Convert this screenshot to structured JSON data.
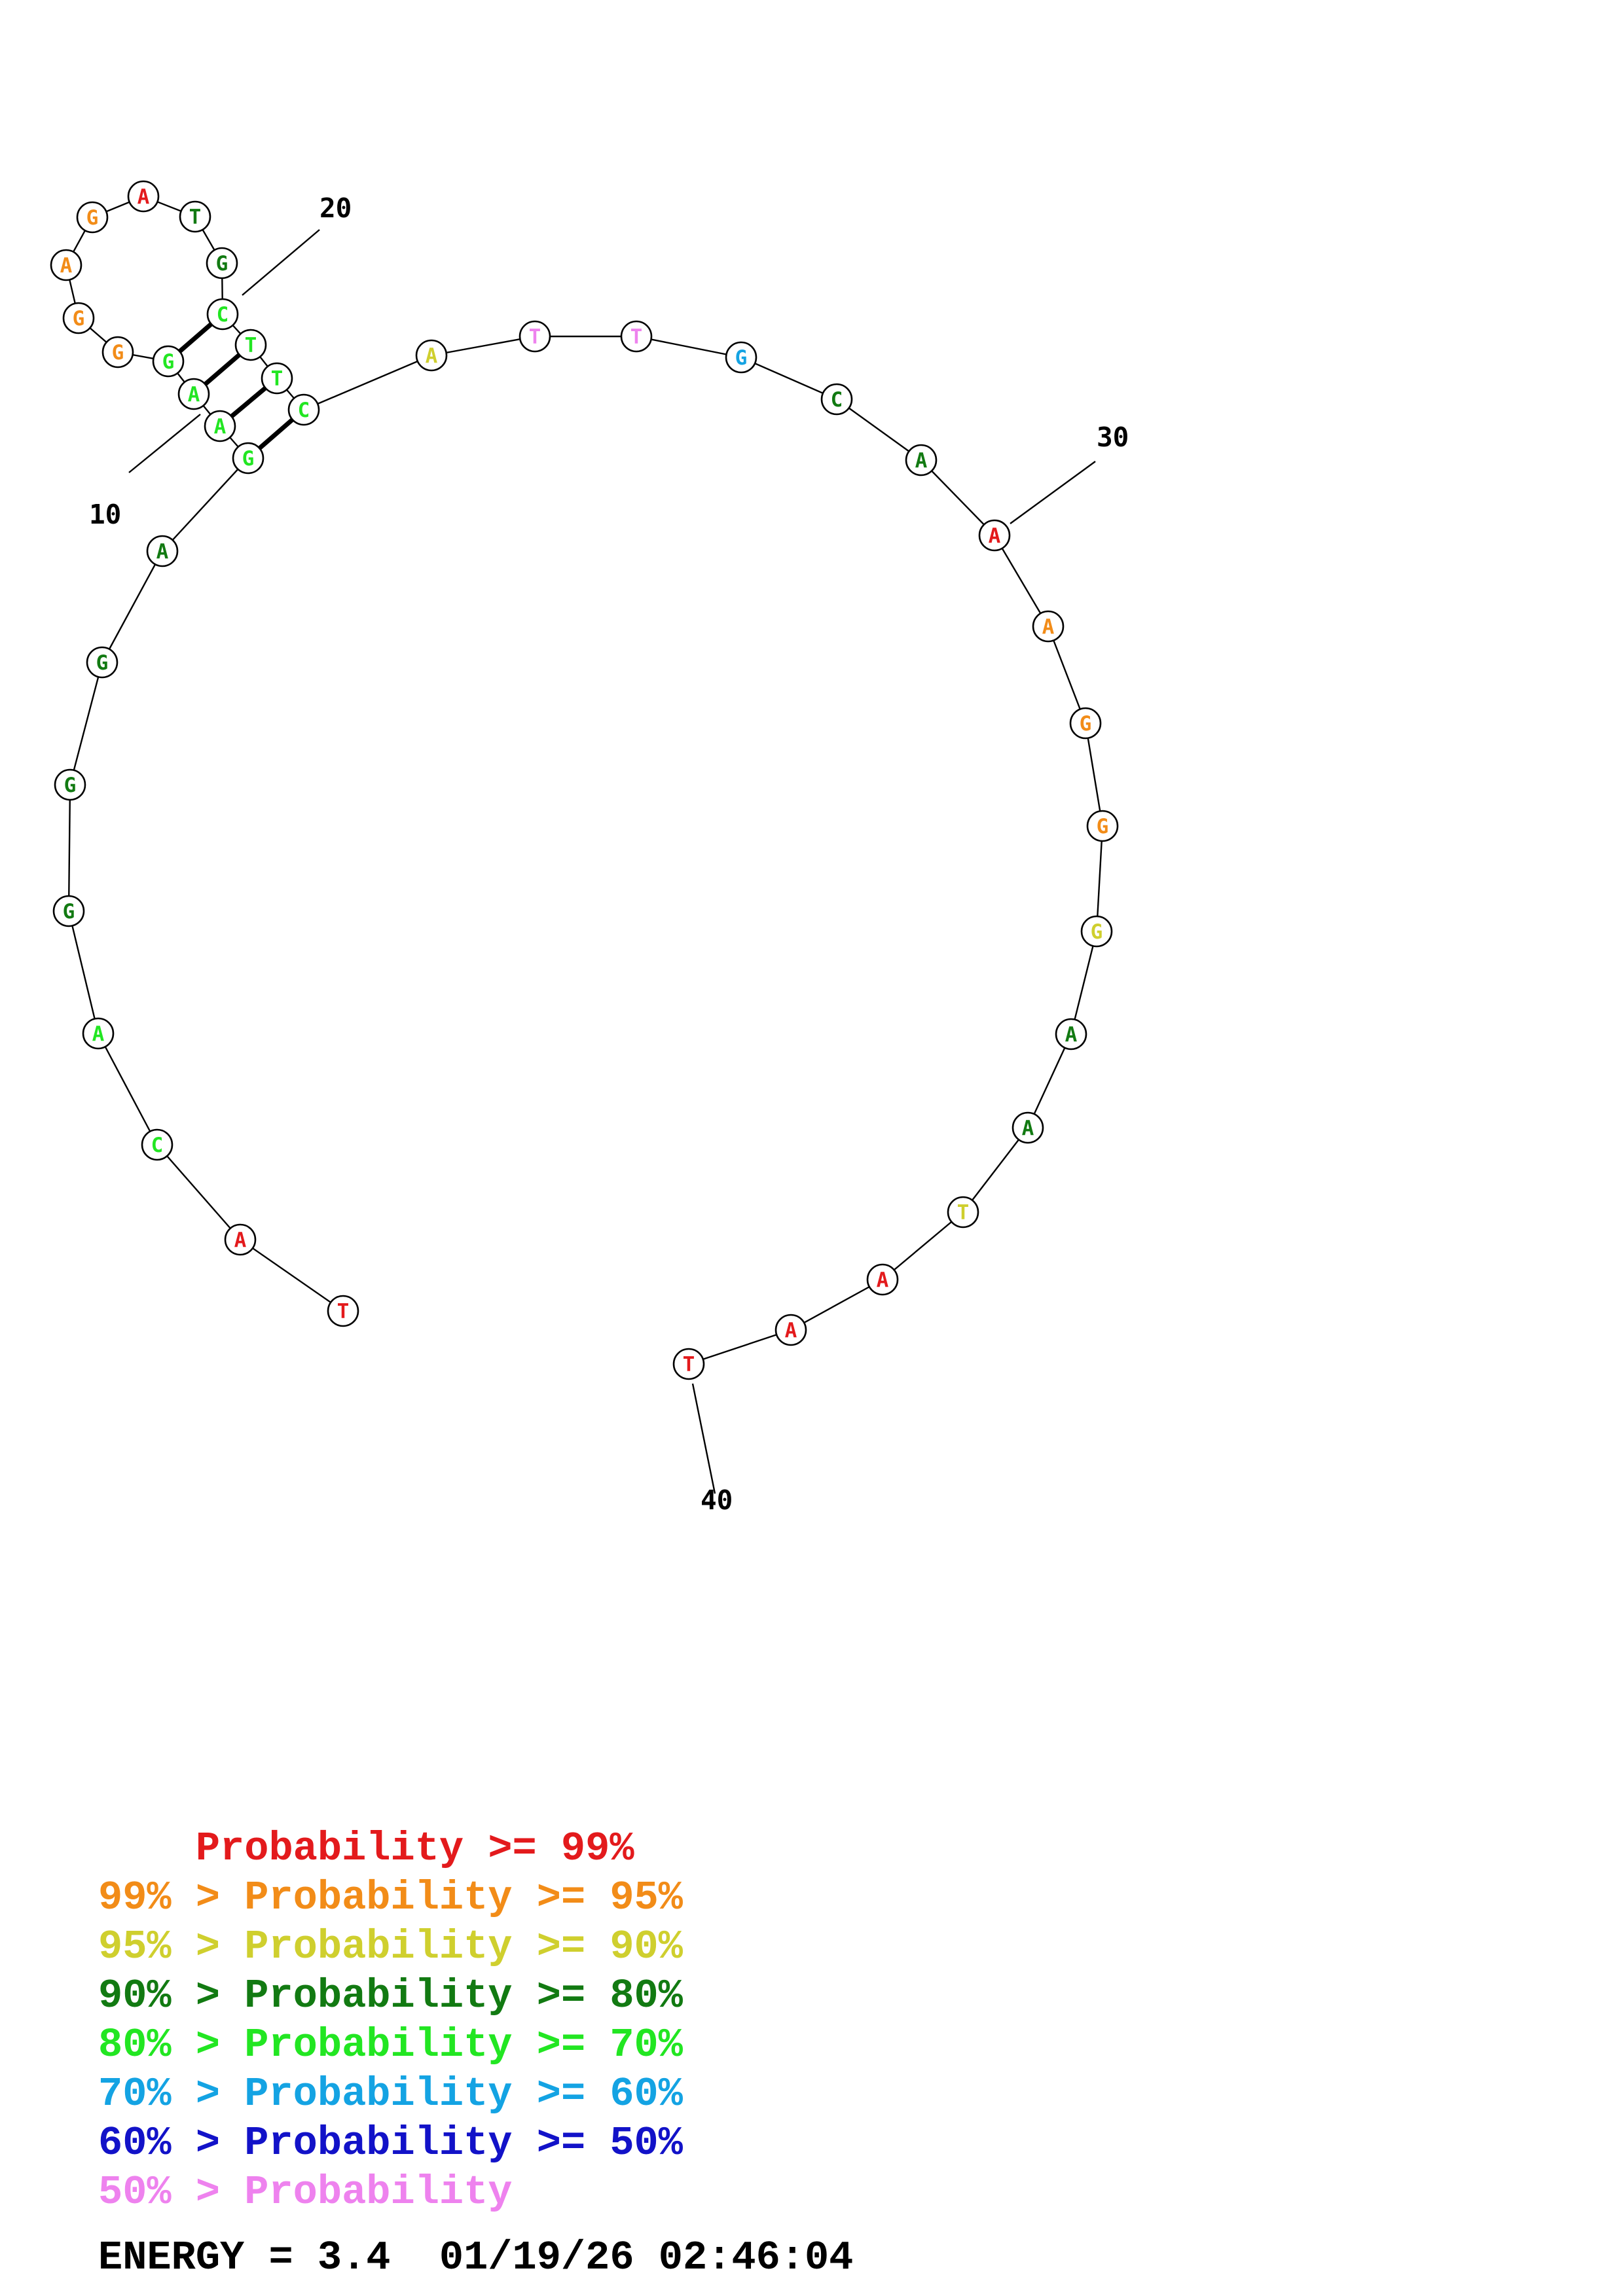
{
  "nucleotides": [
    {
      "n": 1,
      "base": "T",
      "prob": "red"
    },
    {
      "n": 2,
      "base": "A",
      "prob": "red"
    },
    {
      "n": 3,
      "base": "C",
      "prob": "ltgreen"
    },
    {
      "n": 4,
      "base": "A",
      "prob": "ltgreen"
    },
    {
      "n": 5,
      "base": "G",
      "prob": "dkgreen"
    },
    {
      "n": 6,
      "base": "G",
      "prob": "dkgreen"
    },
    {
      "n": 7,
      "base": "G",
      "prob": "dkgreen"
    },
    {
      "n": 8,
      "base": "A",
      "prob": "dkgreen"
    },
    {
      "n": 9,
      "base": "G",
      "prob": "ltgreen"
    },
    {
      "n": 10,
      "base": "A",
      "prob": "ltgreen"
    },
    {
      "n": 11,
      "base": "A",
      "prob": "ltgreen"
    },
    {
      "n": 12,
      "base": "G",
      "prob": "ltgreen"
    },
    {
      "n": 13,
      "base": "G",
      "prob": "orange"
    },
    {
      "n": 14,
      "base": "G",
      "prob": "orange"
    },
    {
      "n": 15,
      "base": "A",
      "prob": "orange"
    },
    {
      "n": 16,
      "base": "G",
      "prob": "orange"
    },
    {
      "n": 17,
      "base": "A",
      "prob": "red"
    },
    {
      "n": 18,
      "base": "T",
      "prob": "dkgreen"
    },
    {
      "n": 19,
      "base": "G",
      "prob": "dkgreen"
    },
    {
      "n": 20,
      "base": "C",
      "prob": "ltgreen"
    },
    {
      "n": 21,
      "base": "T",
      "prob": "ltgreen"
    },
    {
      "n": 22,
      "base": "T",
      "prob": "ltgreen"
    },
    {
      "n": 23,
      "base": "C",
      "prob": "ltgreen"
    },
    {
      "n": 24,
      "base": "A",
      "prob": "yellow"
    },
    {
      "n": 25,
      "base": "T",
      "prob": "pink"
    },
    {
      "n": 26,
      "base": "T",
      "prob": "pink"
    },
    {
      "n": 27,
      "base": "G",
      "prob": "cyan"
    },
    {
      "n": 28,
      "base": "C",
      "prob": "dkgreen"
    },
    {
      "n": 29,
      "base": "A",
      "prob": "dkgreen"
    },
    {
      "n": 30,
      "base": "A",
      "prob": "red"
    },
    {
      "n": 31,
      "base": "A",
      "prob": "orange"
    },
    {
      "n": 32,
      "base": "G",
      "prob": "orange"
    },
    {
      "n": 33,
      "base": "G",
      "prob": "orange"
    },
    {
      "n": 34,
      "base": "G",
      "prob": "yellow"
    },
    {
      "n": 35,
      "base": "A",
      "prob": "dkgreen"
    },
    {
      "n": 36,
      "base": "A",
      "prob": "dkgreen"
    },
    {
      "n": 37,
      "base": "T",
      "prob": "yellow"
    },
    {
      "n": 38,
      "base": "A",
      "prob": "red"
    },
    {
      "n": 39,
      "base": "A",
      "prob": "red"
    },
    {
      "n": 40,
      "base": "T",
      "prob": "red"
    }
  ],
  "pairs": [
    [
      9,
      23
    ],
    [
      10,
      22
    ],
    [
      11,
      21
    ],
    [
      12,
      20
    ]
  ],
  "position_labels": [
    {
      "n": 10,
      "text": "10"
    },
    {
      "n": 20,
      "text": "20"
    },
    {
      "n": 30,
      "text": "30"
    },
    {
      "n": 40,
      "text": "40"
    }
  ],
  "colors": {
    "red": "#e31a1c",
    "orange": "#f28c18",
    "yellow": "#cfcf2e",
    "dkgreen": "#127a12",
    "ltgreen": "#22e622",
    "cyan": "#14a3e3",
    "blue": "#1212c8",
    "pink": "#ee82ee"
  },
  "legend": [
    {
      "color_key": "red",
      "prefix": "    ",
      "mid": "Probability",
      "suffix": " >= 99%"
    },
    {
      "color_key": "orange",
      "prefix": "99% > ",
      "mid": "Probability",
      "suffix": " >= 95%"
    },
    {
      "color_key": "yellow",
      "prefix": "95% > ",
      "mid": "Probability",
      "suffix": " >= 90%"
    },
    {
      "color_key": "dkgreen",
      "prefix": "90% > ",
      "mid": "Probability",
      "suffix": " >= 80%"
    },
    {
      "color_key": "ltgreen",
      "prefix": "80% > ",
      "mid": "Probability",
      "suffix": " >= 70%"
    },
    {
      "color_key": "cyan",
      "prefix": "70% > ",
      "mid": "Probability",
      "suffix": " >= 60%"
    },
    {
      "color_key": "blue",
      "prefix": "60% > ",
      "mid": "Probability",
      "suffix": " >= 50%"
    },
    {
      "color_key": "pink",
      "prefix": "50% > ",
      "mid": "Probability",
      "suffix": ""
    }
  ],
  "energy_text": "ENERGY = 3.4  01/19/26 02:46:04"
}
